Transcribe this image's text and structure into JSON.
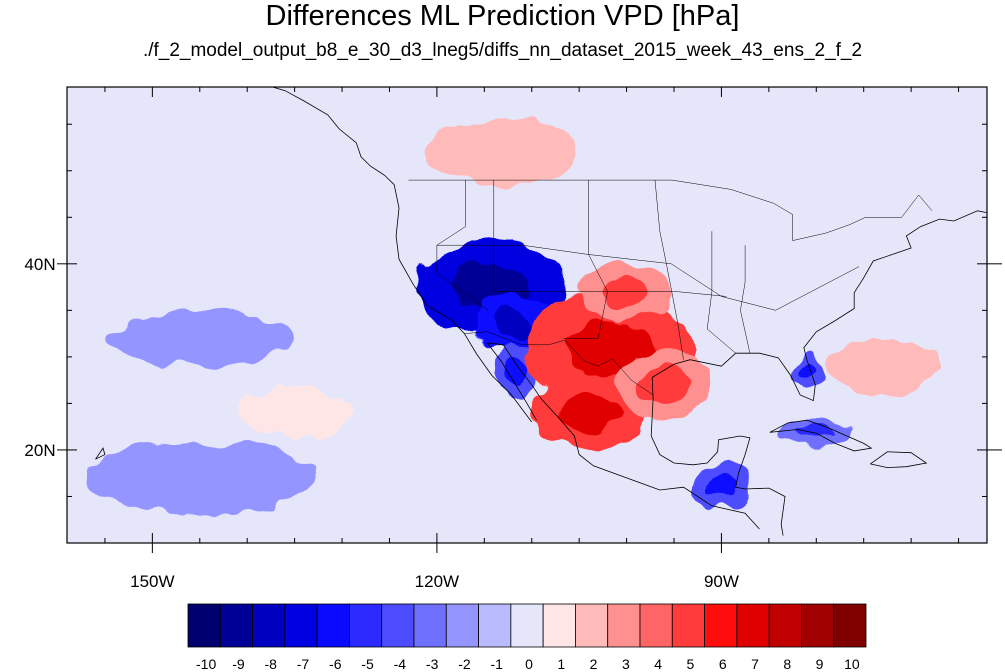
{
  "title": "Differences ML Prediction VPD [hPa]",
  "subtitle": "./f_2_model_output_b8_e_30_d3_lneg5/diffs_nn_dataset_2015_week_43_ens_2_f_2",
  "chart_data": {
    "type": "heatmap",
    "title": "Differences ML Prediction VPD [hPa]",
    "subtitle": "./f_2_model_output_b8_e_30_d3_lneg5/diffs_nn_dataset_2015_week_43_ens_2_f_2",
    "x_axis": {
      "ticks": [
        -150,
        -120,
        -90
      ],
      "tick_labels": [
        "150W",
        "120W",
        "90W"
      ],
      "range": [
        -159,
        -62
      ]
    },
    "y_axis": {
      "ticks": [
        40,
        20
      ],
      "tick_labels": [
        "40N",
        "20N"
      ],
      "range": [
        10,
        59
      ]
    },
    "colorbar": {
      "levels": [
        -10,
        -9,
        -8,
        -7,
        -6,
        -5,
        -4,
        -3,
        -2,
        -1,
        0,
        1,
        2,
        3,
        4,
        5,
        6,
        7,
        8,
        9,
        10
      ],
      "labels": [
        "-10",
        "-9",
        "-8",
        "-7",
        "-6",
        "-5",
        "-4",
        "-3",
        "-2",
        "-1",
        "0",
        "1",
        "2",
        "3",
        "4",
        "5",
        "6",
        "7",
        "8",
        "9",
        "10"
      ],
      "colors": [
        "#00006e",
        "#000096",
        "#0000c0",
        "#0000e0",
        "#0a0aff",
        "#2b2bff",
        "#4d4dff",
        "#7070ff",
        "#9595ff",
        "#babaff",
        "#e6e6fa",
        "#ffe6e6",
        "#ffbaba",
        "#ff9090",
        "#ff6565",
        "#ff3b3b",
        "#ff0c0c",
        "#e00000",
        "#c00000",
        "#a00000",
        "#800000"
      ]
    },
    "background_color": "#e6e6fa",
    "regions": [
      {
        "name": "great-basin-low",
        "lon": -114.5,
        "lat": 37.5,
        "rlon": 8.0,
        "rlat": 5.0,
        "value": -7
      },
      {
        "name": "southwest-low",
        "lon": -112.0,
        "lat": 33.5,
        "rlon": 4.0,
        "rlat": 3.0,
        "value": -6
      },
      {
        "name": "baja-low",
        "lon": -111.5,
        "lat": 28.5,
        "rlon": 2.0,
        "rlat": 3.0,
        "value": -4
      },
      {
        "name": "texas-high",
        "lon": -102.0,
        "lat": 31.0,
        "rlon": 9.0,
        "rlat": 6.0,
        "value": 5
      },
      {
        "name": "mexico-high",
        "lon": -104.0,
        "lat": 24.0,
        "rlon": 6.0,
        "rlat": 4.0,
        "value": 5
      },
      {
        "name": "gulf-high",
        "lon": -96.0,
        "lat": 27.0,
        "rlon": 5.0,
        "rlat": 4.0,
        "value": 3
      },
      {
        "name": "plains-high",
        "lon": -100.0,
        "lat": 37.0,
        "rlon": 5.0,
        "rlat": 3.0,
        "value": 3
      },
      {
        "name": "canada-high",
        "lon": -113.0,
        "lat": 52.0,
        "rlon": 8.0,
        "rlat": 3.5,
        "value": 2
      },
      {
        "name": "florida-low",
        "lon": -81.0,
        "lat": 28.5,
        "rlon": 1.5,
        "rlat": 2.0,
        "value": -4
      },
      {
        "name": "central-america-low",
        "lon": -90.0,
        "lat": 16.0,
        "rlon": 3.0,
        "rlat": 2.5,
        "value": -4
      },
      {
        "name": "pacific-low-1",
        "lon": -145.0,
        "lat": 17.0,
        "rlon": 12.0,
        "rlat": 4.0,
        "value": -2
      },
      {
        "name": "pacific-low-2",
        "lon": -145.0,
        "lat": 32.0,
        "rlon": 10.0,
        "rlat": 3.0,
        "value": -2
      },
      {
        "name": "pacific-high",
        "lon": -135.0,
        "lat": 24.0,
        "rlon": 6.0,
        "rlat": 2.5,
        "value": 1
      },
      {
        "name": "atlantic-high",
        "lon": -73.0,
        "lat": 29.0,
        "rlon": 6.0,
        "rlat": 3.0,
        "value": 2
      },
      {
        "name": "caribbean-low",
        "lon": -80.0,
        "lat": 22.0,
        "rlon": 4.0,
        "rlat": 1.5,
        "value": -3
      }
    ]
  }
}
